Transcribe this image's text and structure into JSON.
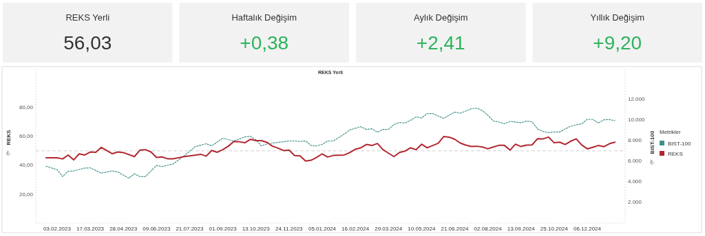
{
  "chart_data": [
    {
      "type": "other",
      "categories": [
        "REKS Yerli",
        "Haftalık Değişim",
        "Aylık Değişim",
        "Yıllık Değişim"
      ],
      "value_labels": [
        "56,03",
        "+0,38",
        "+2,41",
        "+9,20"
      ],
      "colors": [
        "#f2f2f2",
        "#f2f2f2",
        "#f2f2f2",
        "#f2f2f2"
      ]
    },
    {
      "type": "line",
      "title": "REKS Yerli",
      "ylabel": "REKS",
      "y2label": "BIST-100",
      "legend_title": "Metrikler",
      "legend": "right",
      "grid": false,
      "xlim": [
        "2023-01-07",
        "2025-01-23"
      ],
      "xticks": [
        {
          "value": "2023-02-03",
          "label": "03.02.2023"
        },
        {
          "value": "2023-03-17",
          "label": "17.03.2023"
        },
        {
          "value": "2023-04-28",
          "label": "28.04.2023"
        },
        {
          "value": "2023-06-09",
          "label": "09.06.2023"
        },
        {
          "value": "2023-07-21",
          "label": "21.07.2023"
        },
        {
          "value": "2023-09-01",
          "label": "01.09.2023"
        },
        {
          "value": "2023-10-13",
          "label": "13.10.2023"
        },
        {
          "value": "2023-11-24",
          "label": "24.11.2023"
        },
        {
          "value": "2024-01-05",
          "label": "05.01.2024"
        },
        {
          "value": "2024-02-16",
          "label": "16.02.2024"
        },
        {
          "value": "2024-03-29",
          "label": "29.03.2024"
        },
        {
          "value": "2024-05-10",
          "label": "10.05.2024"
        },
        {
          "value": "2024-06-21",
          "label": "21.06.2024"
        },
        {
          "value": "2024-08-02",
          "label": "02.08.2024"
        },
        {
          "value": "2024-09-13",
          "label": "13.09.2024"
        },
        {
          "value": "2024-10-25",
          "label": "25.10.2024"
        },
        {
          "value": "2024-12-06",
          "label": "06.12.2024"
        }
      ],
      "ylim": [
        0,
        107
      ],
      "yticks": [
        {
          "value": 20,
          "label": "20,00"
        },
        {
          "value": 40,
          "label": "40,00"
        },
        {
          "value": 60,
          "label": "60,00"
        },
        {
          "value": 80,
          "label": "80,00"
        }
      ],
      "y2lim": [
        0,
        14930
      ],
      "y2ticks": [
        {
          "value": 2000,
          "label": "2.000"
        },
        {
          "value": 4000,
          "label": "4.000"
        },
        {
          "value": 6000,
          "label": "6.000"
        },
        {
          "value": 8000,
          "label": "8.000"
        },
        {
          "value": 10000,
          "label": "10.000"
        },
        {
          "value": 12000,
          "label": "12.000"
        }
      ],
      "ref_lines": [
        {
          "axis": "y",
          "value": 50,
          "color": "#d0d0d0",
          "line_style": "dashed"
        }
      ],
      "series": [
        {
          "name": "BIST-100",
          "axis": "y2",
          "color": "#3f9088",
          "line_style": "dotted",
          "x": [
            "2023-01-20",
            "2023-02-03",
            "2023-02-10",
            "2023-02-17",
            "2023-02-24",
            "2023-03-10",
            "2023-03-17",
            "2023-03-31",
            "2023-04-14",
            "2023-04-21",
            "2023-05-05",
            "2023-05-12",
            "2023-05-19",
            "2023-05-26",
            "2023-06-09",
            "2023-06-16",
            "2023-06-30",
            "2023-07-14",
            "2023-07-28",
            "2023-08-11",
            "2023-08-18",
            "2023-09-01",
            "2023-09-15",
            "2023-09-29",
            "2023-10-06",
            "2023-10-13",
            "2023-10-20",
            "2023-10-27",
            "2023-11-24",
            "2023-12-01",
            "2023-12-08",
            "2023-12-15",
            "2023-12-22",
            "2023-12-29",
            "2024-01-05",
            "2024-01-12",
            "2024-01-19",
            "2024-02-02",
            "2024-02-09",
            "2024-02-23",
            "2024-03-01",
            "2024-03-08",
            "2024-03-15",
            "2024-03-22",
            "2024-03-29",
            "2024-04-05",
            "2024-04-12",
            "2024-04-19",
            "2024-04-26",
            "2024-05-03",
            "2024-05-10",
            "2024-05-17",
            "2024-05-24",
            "2024-06-07",
            "2024-06-14",
            "2024-06-21",
            "2024-06-28",
            "2024-07-05",
            "2024-07-12",
            "2024-07-19",
            "2024-07-26",
            "2024-08-02",
            "2024-08-09",
            "2024-08-16",
            "2024-08-23",
            "2024-08-30",
            "2024-09-06",
            "2024-09-13",
            "2024-09-20",
            "2024-09-27",
            "2024-10-04",
            "2024-10-11",
            "2024-10-18",
            "2024-10-25",
            "2024-11-01",
            "2024-11-08",
            "2024-11-15",
            "2024-11-22",
            "2024-11-29",
            "2024-12-06",
            "2024-12-13",
            "2024-12-20",
            "2024-12-27",
            "2025-01-03",
            "2025-01-10"
          ],
          "values": [
            5490,
            5150,
            4490,
            5000,
            5040,
            5310,
            5330,
            4820,
            5040,
            4930,
            4330,
            4760,
            4490,
            4490,
            5560,
            5460,
            5710,
            6490,
            7380,
            7670,
            7450,
            8200,
            7930,
            8330,
            8380,
            8050,
            7450,
            7650,
            7930,
            7930,
            7890,
            7930,
            7490,
            7450,
            7600,
            7930,
            7930,
            8600,
            9000,
            9310,
            9050,
            9110,
            8780,
            9050,
            9050,
            9530,
            9710,
            9670,
            9930,
            10250,
            10160,
            10580,
            10580,
            10110,
            10420,
            10720,
            10620,
            10820,
            11050,
            11110,
            10870,
            10420,
            9870,
            9760,
            9600,
            9820,
            9760,
            9690,
            9870,
            9780,
            9090,
            8850,
            8740,
            8800,
            8800,
            9090,
            9360,
            9490,
            9600,
            10020,
            10020,
            9670,
            9980,
            10000,
            9890
          ]
        },
        {
          "name": "REKS",
          "color": "#b0262e",
          "line_style": "solid",
          "x": [
            "2023-01-20",
            "2023-02-03",
            "2023-02-10",
            "2023-02-17",
            "2023-02-24",
            "2023-03-03",
            "2023-03-10",
            "2023-03-17",
            "2023-03-24",
            "2023-03-31",
            "2023-04-14",
            "2023-04-21",
            "2023-04-28",
            "2023-05-12",
            "2023-05-19",
            "2023-05-26",
            "2023-06-02",
            "2023-06-09",
            "2023-06-16",
            "2023-06-23",
            "2023-06-30",
            "2023-07-14",
            "2023-07-21",
            "2023-08-04",
            "2023-08-11",
            "2023-08-18",
            "2023-08-25",
            "2023-09-01",
            "2023-09-08",
            "2023-09-15",
            "2023-09-22",
            "2023-09-29",
            "2023-10-06",
            "2023-10-13",
            "2023-10-20",
            "2023-10-27",
            "2023-11-03",
            "2023-11-10",
            "2023-11-17",
            "2023-11-24",
            "2023-12-01",
            "2023-12-08",
            "2023-12-15",
            "2023-12-22",
            "2023-12-29",
            "2024-01-05",
            "2024-01-12",
            "2024-01-19",
            "2024-02-02",
            "2024-02-09",
            "2024-02-16",
            "2024-02-23",
            "2024-03-01",
            "2024-03-08",
            "2024-03-15",
            "2024-03-22",
            "2024-03-29",
            "2024-04-05",
            "2024-04-12",
            "2024-04-19",
            "2024-04-26",
            "2024-05-03",
            "2024-05-10",
            "2024-05-17",
            "2024-05-24",
            "2024-05-31",
            "2024-06-07",
            "2024-06-14",
            "2024-06-21",
            "2024-06-28",
            "2024-07-05",
            "2024-07-12",
            "2024-07-19",
            "2024-07-26",
            "2024-08-02",
            "2024-08-09",
            "2024-08-16",
            "2024-08-23",
            "2024-08-30",
            "2024-09-06",
            "2024-09-13",
            "2024-09-20",
            "2024-09-27",
            "2024-10-04",
            "2024-10-11",
            "2024-10-18",
            "2024-10-25",
            "2024-11-01",
            "2024-11-08",
            "2024-11-15",
            "2024-11-22",
            "2024-11-29",
            "2024-12-06",
            "2024-12-13",
            "2024-12-20",
            "2024-12-27",
            "2025-01-03",
            "2025-01-10"
          ],
          "values": [
            45.2,
            45.2,
            44.4,
            47.1,
            43.7,
            47.9,
            47.1,
            49.2,
            49.0,
            52.4,
            48.0,
            49.2,
            48.8,
            46.0,
            50.5,
            50.8,
            49.2,
            45.4,
            45.8,
            44.5,
            44.5,
            46.0,
            46.5,
            47.6,
            46.3,
            50.3,
            49.0,
            50.8,
            53.2,
            56.5,
            56.3,
            55.6,
            58.0,
            57.1,
            57.1,
            55.9,
            53.2,
            51.9,
            50.2,
            50.5,
            46.7,
            46.5,
            42.9,
            43.5,
            45.5,
            47.9,
            45.7,
            46.8,
            47.1,
            48.8,
            51.1,
            52.1,
            54.4,
            53.7,
            55.1,
            50.8,
            48.4,
            46.0,
            48.9,
            49.8,
            52.1,
            50.8,
            54.6,
            52.1,
            53.7,
            55.2,
            59.9,
            59.5,
            58.0,
            55.4,
            54.0,
            53.0,
            53.2,
            52.7,
            51.4,
            52.7,
            53.8,
            53.8,
            50.5,
            54.6,
            53.0,
            54.0,
            54.1,
            58.4,
            58.3,
            59.5,
            55.6,
            56.0,
            54.4,
            56.7,
            58.3,
            54.0,
            51.4,
            52.4,
            53.7,
            52.9,
            54.9,
            56.0
          ]
        }
      ]
    }
  ]
}
